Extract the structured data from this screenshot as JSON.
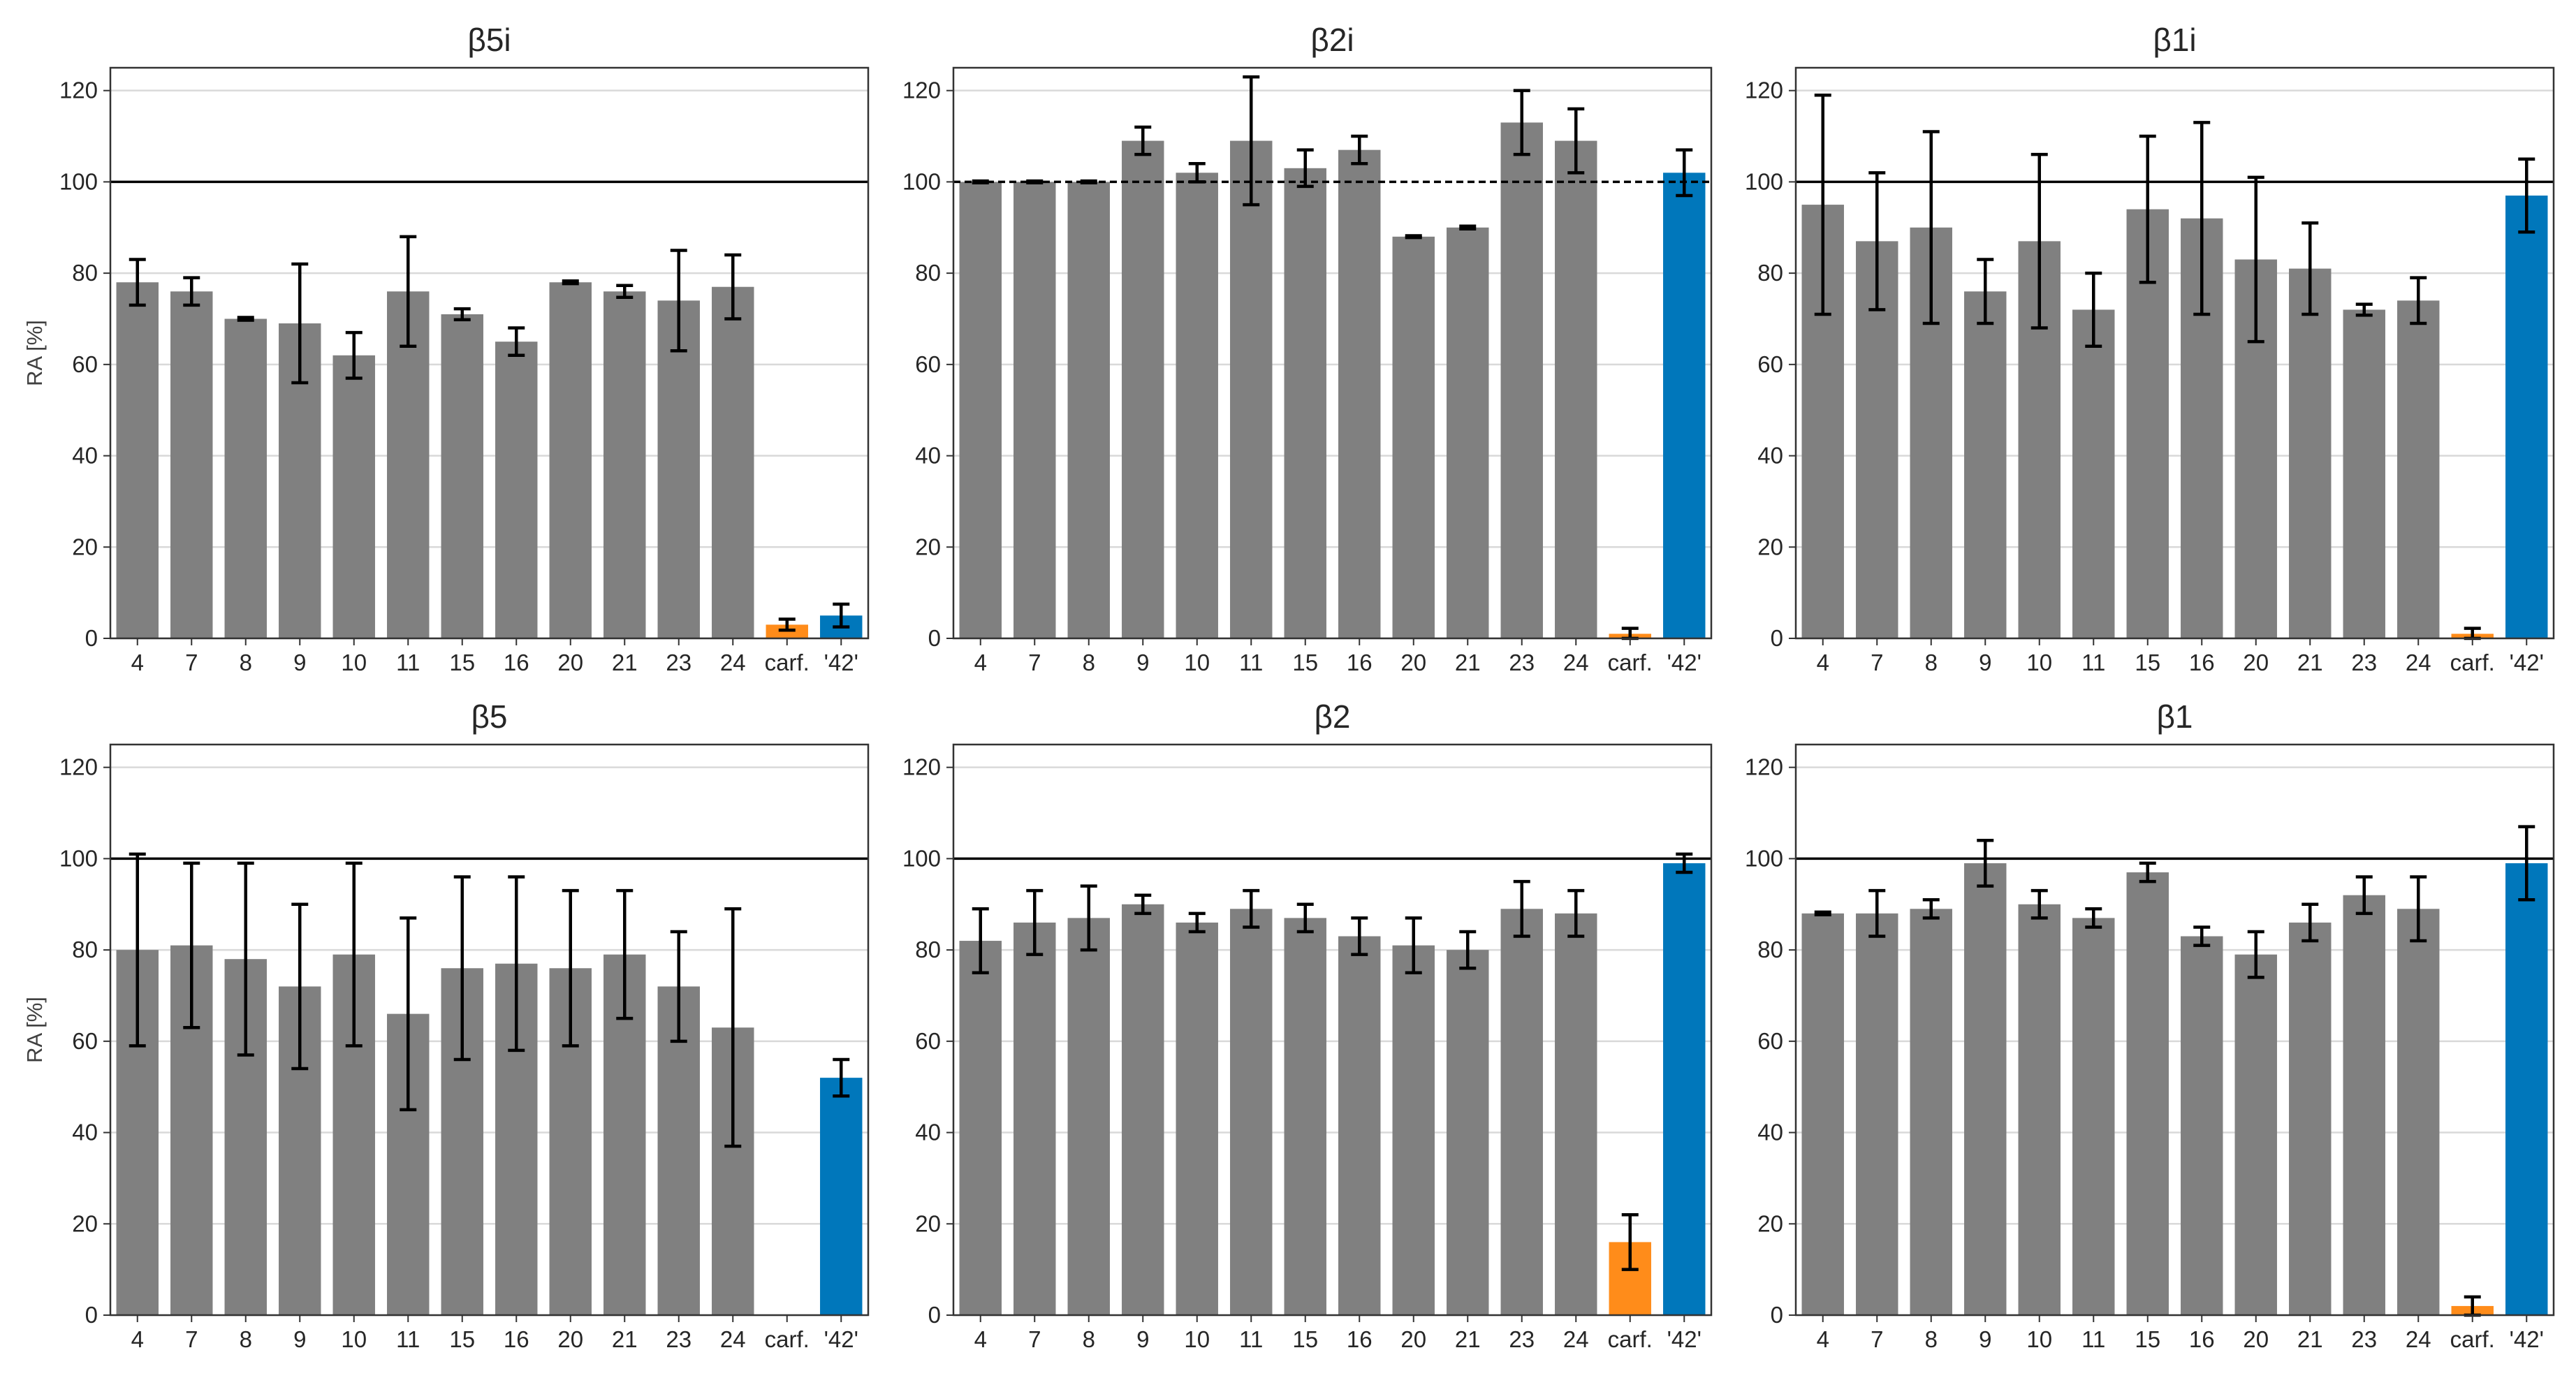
{
  "colors": {
    "compound": "#808080",
    "carf": "#ff8c1a",
    "ref42": "#0077bb",
    "grid": "#d9d9d9",
    "frame": "#333333",
    "errorbar": "#000000"
  },
  "chart_data": [
    {
      "type": "bar",
      "title": "β5i",
      "ylabel": "RA [%]",
      "xlabel": "",
      "ylim": [
        0,
        125
      ],
      "yticks": [
        "0",
        "20",
        "40",
        "60",
        "80",
        "100",
        "120"
      ],
      "reference_line": 100,
      "reference_style": "solid",
      "grid": true,
      "categories": [
        "4",
        "7",
        "8",
        "9",
        "10",
        "11",
        "15",
        "16",
        "20",
        "21",
        "23",
        "24",
        "carf.",
        "'42'"
      ],
      "values": [
        78,
        76,
        70,
        69,
        62,
        76,
        71,
        65,
        78,
        76,
        74,
        77,
        3,
        5
      ],
      "errors": [
        5,
        3,
        0.3,
        13,
        5,
        12,
        1.2,
        3,
        0.3,
        1.3,
        11,
        7,
        1.2,
        2.5
      ]
    },
    {
      "type": "bar",
      "title": "β2i",
      "ylabel": "",
      "xlabel": "",
      "ylim": [
        0,
        125
      ],
      "yticks": [
        "0",
        "20",
        "40",
        "60",
        "80",
        "100",
        "120"
      ],
      "reference_line": 100,
      "reference_style": "dashed",
      "grid": true,
      "categories": [
        "4",
        "7",
        "8",
        "9",
        "10",
        "11",
        "15",
        "16",
        "20",
        "21",
        "23",
        "24",
        "carf.",
        "'42'"
      ],
      "values": [
        100,
        100,
        100,
        109,
        102,
        109,
        103,
        107,
        88,
        90,
        113,
        109,
        1,
        102
      ],
      "errors": [
        0.2,
        0.2,
        0.2,
        3,
        2,
        14,
        4,
        3,
        0.2,
        0.3,
        7,
        7,
        1.2,
        5
      ]
    },
    {
      "type": "bar",
      "title": "β1i",
      "ylabel": "",
      "xlabel": "",
      "ylim": [
        0,
        125
      ],
      "yticks": [
        "0",
        "20",
        "40",
        "60",
        "80",
        "100",
        "120"
      ],
      "reference_line": 100,
      "reference_style": "solid",
      "grid": true,
      "categories": [
        "4",
        "7",
        "8",
        "9",
        "10",
        "11",
        "15",
        "16",
        "20",
        "21",
        "23",
        "24",
        "carf.",
        "'42'"
      ],
      "values": [
        95,
        87,
        90,
        76,
        87,
        72,
        94,
        92,
        83,
        81,
        72,
        74,
        1,
        97
      ],
      "errors": [
        24,
        15,
        21,
        7,
        19,
        8,
        16,
        21,
        18,
        10,
        1.2,
        5,
        1.2,
        8
      ]
    },
    {
      "type": "bar",
      "title": "β5",
      "ylabel": "RA [%]",
      "xlabel": "",
      "ylim": [
        0,
        125
      ],
      "yticks": [
        "0",
        "20",
        "40",
        "60",
        "80",
        "100",
        "120"
      ],
      "reference_line": 100,
      "reference_style": "solid",
      "grid": true,
      "categories": [
        "4",
        "7",
        "8",
        "9",
        "10",
        "11",
        "15",
        "16",
        "20",
        "21",
        "23",
        "24",
        "carf.",
        "'42'"
      ],
      "values": [
        80,
        81,
        78,
        72,
        79,
        66,
        76,
        77,
        76,
        79,
        72,
        63,
        0,
        52
      ],
      "errors": [
        21,
        18,
        21,
        18,
        20,
        21,
        20,
        19,
        17,
        14,
        12,
        26,
        0,
        4
      ]
    },
    {
      "type": "bar",
      "title": "β2",
      "ylabel": "",
      "xlabel": "",
      "ylim": [
        0,
        125
      ],
      "yticks": [
        "0",
        "20",
        "40",
        "60",
        "80",
        "100",
        "120"
      ],
      "reference_line": 100,
      "reference_style": "solid",
      "grid": true,
      "categories": [
        "4",
        "7",
        "8",
        "9",
        "10",
        "11",
        "15",
        "16",
        "20",
        "21",
        "23",
        "24",
        "carf.",
        "'42'"
      ],
      "values": [
        82,
        86,
        87,
        90,
        86,
        89,
        87,
        83,
        81,
        80,
        89,
        88,
        16,
        99
      ],
      "errors": [
        7,
        7,
        7,
        2,
        2,
        4,
        3,
        4,
        6,
        4,
        6,
        5,
        6,
        2
      ]
    },
    {
      "type": "bar",
      "title": "β1",
      "ylabel": "",
      "xlabel": "",
      "ylim": [
        0,
        125
      ],
      "yticks": [
        "0",
        "20",
        "40",
        "60",
        "80",
        "100",
        "120"
      ],
      "reference_line": 100,
      "reference_style": "solid",
      "grid": true,
      "categories": [
        "4",
        "7",
        "8",
        "9",
        "10",
        "11",
        "15",
        "16",
        "20",
        "21",
        "23",
        "24",
        "carf.",
        "'42'"
      ],
      "values": [
        88,
        88,
        89,
        99,
        90,
        87,
        97,
        83,
        79,
        86,
        92,
        89,
        2,
        99
      ],
      "errors": [
        0.3,
        5,
        2,
        5,
        3,
        2,
        2,
        2,
        5,
        4,
        4,
        7,
        2,
        8
      ]
    }
  ]
}
